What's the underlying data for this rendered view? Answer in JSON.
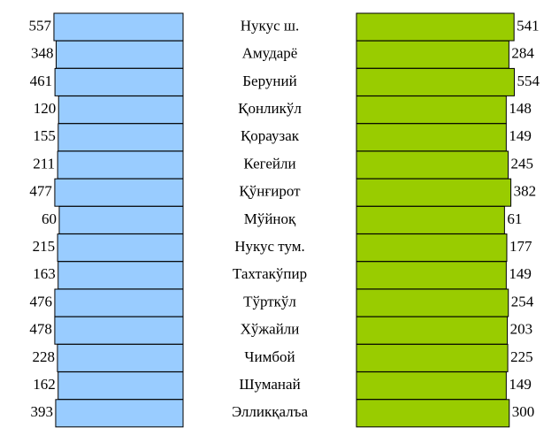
{
  "chart_data": {
    "type": "butterfly-bar",
    "categories": [
      "Нукус ш.",
      "Амударё",
      "Беруний",
      "Қонликўл",
      "Қораузак",
      "Кегейли",
      "Қўнғирот",
      "Мўйноқ",
      "Нукус тум.",
      "Тахтакўпир",
      "Тўрткўл",
      "Хўжайли",
      "Чимбой",
      "Шуманай",
      "Элликқалъа"
    ],
    "series": [
      {
        "color": "#99ccff",
        "values": [
          557,
          348,
          461,
          120,
          155,
          211,
          477,
          60,
          215,
          163,
          476,
          478,
          228,
          162,
          393
        ]
      },
      {
        "color": "#99cc00",
        "values": [
          541,
          284,
          554,
          148,
          149,
          245,
          382,
          61,
          177,
          149,
          254,
          203,
          225,
          149,
          300
        ]
      }
    ]
  }
}
